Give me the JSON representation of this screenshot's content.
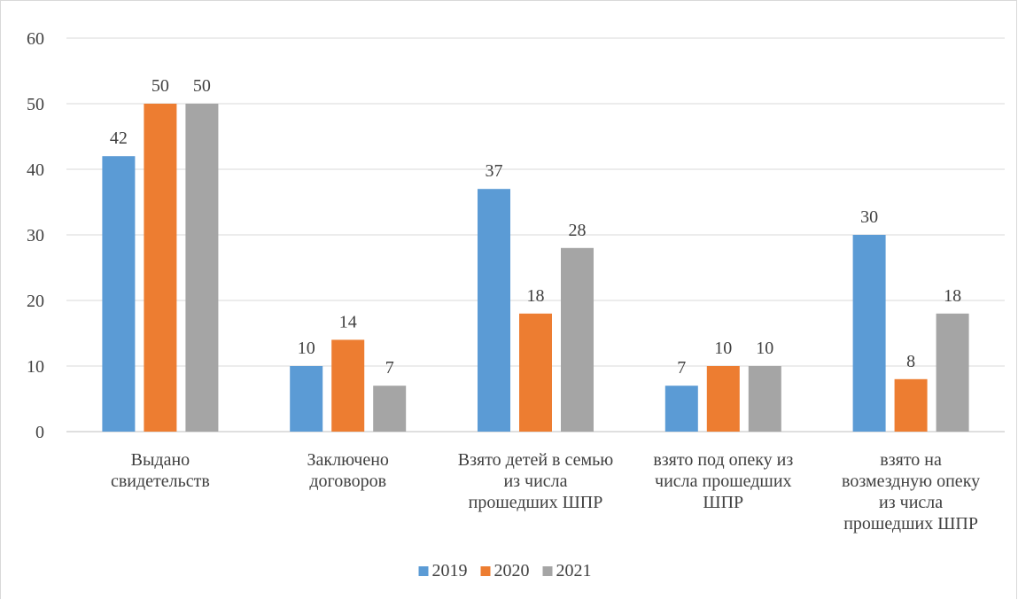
{
  "chart_data": {
    "type": "bar",
    "categories": [
      [
        "Выдано",
        "свидетельств"
      ],
      [
        "Заключено",
        "договоров"
      ],
      [
        "Взято детей в семью",
        "из числа",
        "прошедших ШПР"
      ],
      [
        "взято под опеку из",
        "числа прошедших",
        "ШПР"
      ],
      [
        "взято на",
        "возмездную опеку",
        "из числа",
        "прошедших ШПР"
      ]
    ],
    "series": [
      {
        "name": "2019",
        "color": "#5b9bd5",
        "values": [
          42,
          10,
          37,
          7,
          30
        ]
      },
      {
        "name": "2020",
        "color": "#ed7d31",
        "values": [
          50,
          14,
          18,
          10,
          8
        ]
      },
      {
        "name": "2021",
        "color": "#a5a5a5",
        "values": [
          50,
          7,
          28,
          10,
          18
        ]
      }
    ],
    "y_ticks": [
      0,
      10,
      20,
      30,
      40,
      50,
      60
    ],
    "ylim": [
      0,
      60
    ],
    "grid": true,
    "legend_position": "bottom",
    "data_labels": true
  }
}
